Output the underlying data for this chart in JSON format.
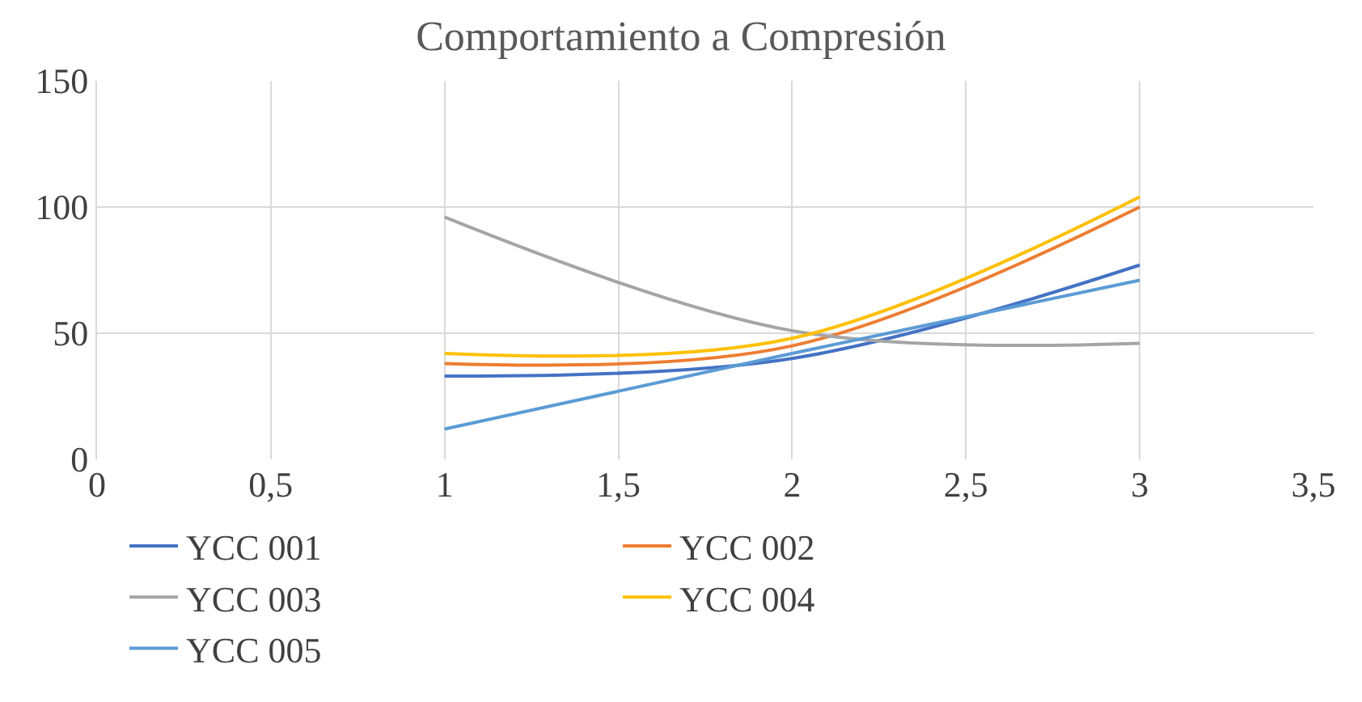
{
  "chart_data": {
    "type": "line",
    "title": "Comportamiento a Compresión",
    "x": [
      1,
      2,
      3
    ],
    "series": [
      {
        "name": "YCC 001",
        "color": "#4472c4",
        "values": [
          33,
          40,
          77
        ]
      },
      {
        "name": "YCC 002",
        "color": "#ed7d31",
        "values": [
          38,
          45,
          100
        ]
      },
      {
        "name": "YCC 003",
        "color": "#a5a5a5",
        "values": [
          96,
          51,
          46
        ]
      },
      {
        "name": "YCC 004",
        "color": "#ffc000",
        "values": [
          42,
          48,
          104
        ]
      },
      {
        "name": "YCC 005",
        "color": "#5b9bd5",
        "values": [
          12,
          42,
          71
        ]
      }
    ],
    "xlim": [
      0,
      3.5
    ],
    "xticks": [
      0,
      {
        "value": 0.5,
        "label": "0,5"
      },
      1,
      {
        "value": 1.5,
        "label": "1,5"
      },
      2,
      {
        "value": 2.5,
        "label": "2,5"
      },
      3,
      {
        "value": 3.5,
        "label": "3,5"
      }
    ],
    "ylim": [
      0,
      150
    ],
    "yticks": [
      0,
      50,
      100,
      150
    ],
    "grid": true,
    "legend": "bottom",
    "marker": "none",
    "line_style": "solid"
  }
}
